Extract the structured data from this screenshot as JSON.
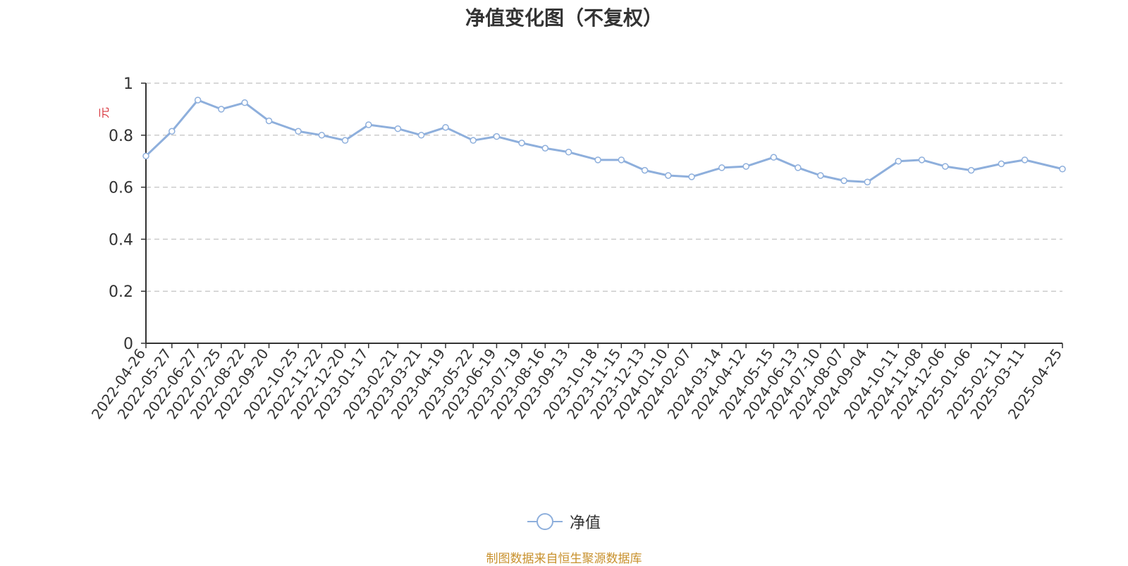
{
  "chart_data": {
    "type": "line",
    "title": "净值变化图（不复权）",
    "ylabel": "元",
    "ylim": [
      0,
      1
    ],
    "yticks": [
      0,
      0.2,
      0.4,
      0.6,
      0.8,
      1
    ],
    "grid": true,
    "legend_position": "bottom-center",
    "source": "制图数据来自恒生聚源数据库",
    "x_tick_labels": [
      "2022-04-26",
      "2022-05-27",
      "2022-06-27",
      "2022-07-25",
      "2022-08-22",
      "2022-09-20",
      "2022-10-25",
      "2022-11-22",
      "2022-12-20",
      "2023-01-17",
      "2023-02-21",
      "2023-03-21",
      "2023-04-19",
      "2023-05-22",
      "2023-06-19",
      "2023-07-19",
      "2023-08-16",
      "2023-09-13",
      "2023-10-18",
      "2023-11-15",
      "2023-12-13",
      "2024-01-10",
      "2024-02-07",
      "2024-03-14",
      "2024-04-12",
      "2024-05-15",
      "2024-06-13",
      "2024-07-10",
      "2024-08-07",
      "2024-09-04",
      "2024-10-11",
      "2024-11-08",
      "2024-12-06",
      "2025-01-06",
      "2025-02-11",
      "2025-03-11",
      "2025-04-25"
    ],
    "series": [
      {
        "name": "净值",
        "color": "#8eafdc",
        "x": [
          "2022-04-26",
          "2022-05-27",
          "2022-06-27",
          "2022-07-25",
          "2022-08-22",
          "2022-09-20",
          "2022-10-25",
          "2022-11-22",
          "2022-12-20",
          "2023-01-17",
          "2023-02-21",
          "2023-03-21",
          "2023-04-19",
          "2023-05-22",
          "2023-06-19",
          "2023-07-19",
          "2023-08-16",
          "2023-09-13",
          "2023-10-18",
          "2023-11-15",
          "2023-12-13",
          "2024-01-10",
          "2024-02-07",
          "2024-03-14",
          "2024-04-12",
          "2024-05-15",
          "2024-06-13",
          "2024-07-10",
          "2024-08-07",
          "2024-09-04",
          "2024-10-11",
          "2024-11-08",
          "2024-12-06",
          "2025-01-06",
          "2025-02-11",
          "2025-03-11",
          "2025-04-25"
        ],
        "values": [
          0.72,
          0.815,
          0.935,
          0.9,
          0.925,
          0.855,
          0.815,
          0.8,
          0.78,
          0.84,
          0.825,
          0.8,
          0.83,
          0.78,
          0.795,
          0.77,
          0.75,
          0.735,
          0.705,
          0.705,
          0.665,
          0.645,
          0.64,
          0.675,
          0.68,
          0.715,
          0.675,
          0.645,
          0.625,
          0.62,
          0.7,
          0.705,
          0.68,
          0.665,
          0.69,
          0.705,
          0.67
        ]
      }
    ]
  }
}
